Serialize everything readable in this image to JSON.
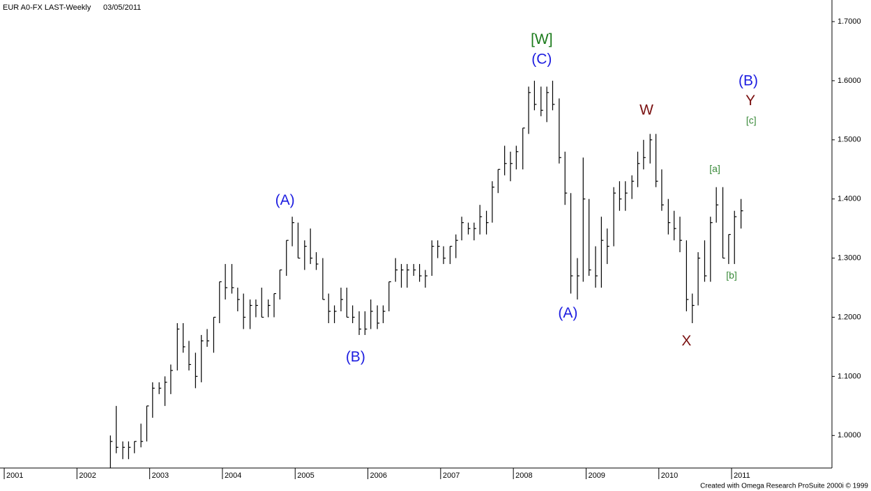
{
  "chart_data": {
    "type": "ohlc",
    "title": "EUR A0-FX LAST-Weekly",
    "date": "03/05/2011",
    "footer": "Created with Omega Research ProSuite 2000i © 1999",
    "color": "#000000",
    "x": [
      2002.46,
      2002.54,
      2002.63,
      2002.71,
      2002.79,
      2002.88,
      2002.96,
      2003.04,
      2003.13,
      2003.21,
      2003.29,
      2003.38,
      2003.46,
      2003.54,
      2003.63,
      2003.71,
      2003.79,
      2003.88,
      2003.96,
      2004.04,
      2004.13,
      2004.21,
      2004.29,
      2004.38,
      2004.46,
      2004.54,
      2004.63,
      2004.71,
      2004.79,
      2004.88,
      2004.96,
      2005.04,
      2005.13,
      2005.21,
      2005.29,
      2005.38,
      2005.46,
      2005.54,
      2005.63,
      2005.71,
      2005.79,
      2005.88,
      2005.96,
      2006.04,
      2006.13,
      2006.21,
      2006.29,
      2006.38,
      2006.46,
      2006.54,
      2006.63,
      2006.71,
      2006.79,
      2006.88,
      2006.96,
      2007.04,
      2007.13,
      2007.21,
      2007.29,
      2007.38,
      2007.46,
      2007.54,
      2007.63,
      2007.71,
      2007.79,
      2007.88,
      2007.96,
      2008.04,
      2008.13,
      2008.21,
      2008.29,
      2008.38,
      2008.46,
      2008.54,
      2008.63,
      2008.71,
      2008.79,
      2008.88,
      2008.96,
      2009.04,
      2009.13,
      2009.21,
      2009.29,
      2009.38,
      2009.46,
      2009.54,
      2009.63,
      2009.71,
      2009.79,
      2009.88,
      2009.96,
      2010.04,
      2010.13,
      2010.21,
      2010.29,
      2010.38,
      2010.46,
      2010.54,
      2010.63,
      2010.71,
      2010.79,
      2010.88,
      2010.96,
      2011.04,
      2011.13
    ],
    "high": [
      1.0,
      1.05,
      0.99,
      0.99,
      0.99,
      1.02,
      1.05,
      1.09,
      1.09,
      1.1,
      1.12,
      1.19,
      1.19,
      1.16,
      1.14,
      1.17,
      1.18,
      1.2,
      1.26,
      1.29,
      1.29,
      1.25,
      1.24,
      1.23,
      1.23,
      1.25,
      1.23,
      1.24,
      1.28,
      1.33,
      1.37,
      1.36,
      1.33,
      1.35,
      1.31,
      1.3,
      1.24,
      1.22,
      1.25,
      1.25,
      1.22,
      1.21,
      1.21,
      1.23,
      1.22,
      1.22,
      1.26,
      1.3,
      1.29,
      1.29,
      1.29,
      1.29,
      1.28,
      1.33,
      1.33,
      1.32,
      1.32,
      1.34,
      1.37,
      1.36,
      1.36,
      1.39,
      1.38,
      1.43,
      1.45,
      1.49,
      1.48,
      1.49,
      1.52,
      1.59,
      1.6,
      1.59,
      1.59,
      1.6,
      1.57,
      1.48,
      1.41,
      1.3,
      1.47,
      1.4,
      1.32,
      1.37,
      1.35,
      1.42,
      1.43,
      1.43,
      1.44,
      1.48,
      1.5,
      1.51,
      1.51,
      1.45,
      1.4,
      1.38,
      1.37,
      1.33,
      1.24,
      1.31,
      1.33,
      1.37,
      1.42,
      1.42,
      1.34,
      1.38,
      1.4
    ],
    "low": [
      0.945,
      0.97,
      0.96,
      0.96,
      0.97,
      0.98,
      0.99,
      1.03,
      1.07,
      1.05,
      1.07,
      1.11,
      1.14,
      1.11,
      1.08,
      1.09,
      1.15,
      1.14,
      1.19,
      1.23,
      1.24,
      1.21,
      1.18,
      1.18,
      1.2,
      1.2,
      1.2,
      1.2,
      1.23,
      1.27,
      1.32,
      1.3,
      1.28,
      1.29,
      1.28,
      1.23,
      1.19,
      1.19,
      1.21,
      1.2,
      1.19,
      1.17,
      1.17,
      1.18,
      1.18,
      1.19,
      1.21,
      1.26,
      1.25,
      1.25,
      1.27,
      1.26,
      1.25,
      1.27,
      1.3,
      1.29,
      1.29,
      1.3,
      1.33,
      1.34,
      1.33,
      1.34,
      1.34,
      1.36,
      1.41,
      1.44,
      1.43,
      1.45,
      1.45,
      1.51,
      1.55,
      1.54,
      1.53,
      1.55,
      1.46,
      1.39,
      1.24,
      1.23,
      1.26,
      1.27,
      1.25,
      1.25,
      1.29,
      1.32,
      1.38,
      1.38,
      1.4,
      1.42,
      1.45,
      1.46,
      1.42,
      1.38,
      1.34,
      1.33,
      1.31,
      1.21,
      1.19,
      1.22,
      1.26,
      1.26,
      1.36,
      1.3,
      1.29,
      1.29,
      1.35
    ],
    "close": [
      0.99,
      0.98,
      0.98,
      0.98,
      0.99,
      0.99,
      1.05,
      1.08,
      1.08,
      1.09,
      1.11,
      1.18,
      1.15,
      1.12,
      1.1,
      1.16,
      1.16,
      1.2,
      1.26,
      1.25,
      1.25,
      1.23,
      1.2,
      1.22,
      1.22,
      1.2,
      1.22,
      1.24,
      1.28,
      1.33,
      1.36,
      1.3,
      1.32,
      1.3,
      1.29,
      1.23,
      1.21,
      1.21,
      1.23,
      1.2,
      1.2,
      1.18,
      1.18,
      1.21,
      1.19,
      1.21,
      1.26,
      1.28,
      1.28,
      1.28,
      1.28,
      1.27,
      1.27,
      1.32,
      1.32,
      1.3,
      1.32,
      1.33,
      1.36,
      1.35,
      1.35,
      1.37,
      1.36,
      1.42,
      1.45,
      1.46,
      1.46,
      1.48,
      1.52,
      1.58,
      1.56,
      1.55,
      1.58,
      1.56,
      1.47,
      1.41,
      1.27,
      1.27,
      1.4,
      1.28,
      1.27,
      1.33,
      1.32,
      1.41,
      1.4,
      1.41,
      1.43,
      1.46,
      1.47,
      1.5,
      1.43,
      1.39,
      1.36,
      1.35,
      1.33,
      1.23,
      1.22,
      1.3,
      1.27,
      1.36,
      1.39,
      1.3,
      1.34,
      1.37,
      1.38
    ],
    "xlim": [
      2000.99,
      2012.38
    ],
    "xticks": [
      2001,
      2002,
      2003,
      2004,
      2005,
      2006,
      2007,
      2008,
      2009,
      2010,
      2011
    ],
    "ylim": [
      0.945,
      1.7365
    ],
    "yticks": [
      {
        "value": 1.0,
        "label": "1.0000"
      },
      {
        "value": 1.1,
        "label": "1.1000"
      },
      {
        "value": 1.2,
        "label": "1.2000"
      },
      {
        "value": 1.3,
        "label": "1.3000"
      },
      {
        "value": 1.4,
        "label": "1.4000"
      },
      {
        "value": 1.5,
        "label": "1.5000"
      },
      {
        "value": 1.6,
        "label": "1.6000"
      },
      {
        "value": 1.7,
        "label": "1.7000"
      }
    ],
    "annotations": [
      {
        "text": "(A)",
        "x": 2004.86,
        "y": 1.397,
        "color": "#1c1ce0"
      },
      {
        "text": "(B)",
        "x": 2005.83,
        "y": 1.132,
        "color": "#1c1ce0"
      },
      {
        "text": "[W]",
        "x": 2008.39,
        "y": 1.669,
        "color": "#1a7a1a"
      },
      {
        "text": "(C)",
        "x": 2008.39,
        "y": 1.635,
        "color": "#1c1ce0"
      },
      {
        "text": "(A)",
        "x": 2008.75,
        "y": 1.206,
        "color": "#1c1ce0"
      },
      {
        "text": "W",
        "x": 2009.83,
        "y": 1.549,
        "color": "#7a1010"
      },
      {
        "text": "X",
        "x": 2010.38,
        "y": 1.159,
        "color": "#7a1010"
      },
      {
        "text": "(B)",
        "x": 2011.23,
        "y": 1.599,
        "color": "#1c1ce0"
      },
      {
        "text": "Y",
        "x": 2011.26,
        "y": 1.565,
        "color": "#7a1010"
      },
      {
        "text": "[c]",
        "x": 2011.27,
        "y": 1.532,
        "color": "#3a8a3a"
      },
      {
        "text": "[a]",
        "x": 2010.77,
        "y": 1.45,
        "color": "#3a8a3a"
      },
      {
        "text": "[b]",
        "x": 2011.0,
        "y": 1.27,
        "color": "#3a8a3a"
      }
    ]
  }
}
